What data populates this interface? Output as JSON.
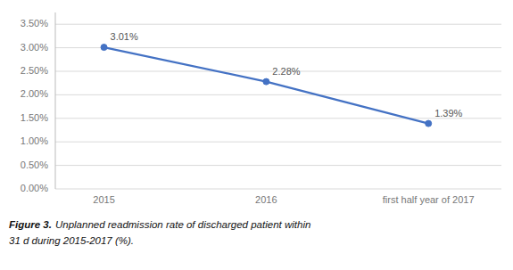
{
  "chart_data": {
    "type": "line",
    "categories": [
      "2015",
      "2016",
      "first half year of 2017"
    ],
    "values": [
      3.01,
      2.28,
      1.39
    ],
    "value_labels": [
      "3.01%",
      "2.28%",
      "1.39%"
    ],
    "data_labels": true,
    "color": "#4472C4",
    "marker": "circle",
    "ylim": [
      0.0,
      3.75
    ],
    "yticks": [
      {
        "value": 0.0,
        "label": "0.00%"
      },
      {
        "value": 0.5,
        "label": "0.50%"
      },
      {
        "value": 1.0,
        "label": "1.00%"
      },
      {
        "value": 1.5,
        "label": "1.50%"
      },
      {
        "value": 2.0,
        "label": "2.00%"
      },
      {
        "value": 2.5,
        "label": "2.50%"
      },
      {
        "value": 3.0,
        "label": "3.00%"
      },
      {
        "value": 3.5,
        "label": "3.50%"
      }
    ],
    "grid": true,
    "annotations": [
      "Figure 3.",
      "Unplanned readmission rate of discharged patient within",
      "31 d during 2015-2017 (%)."
    ]
  }
}
